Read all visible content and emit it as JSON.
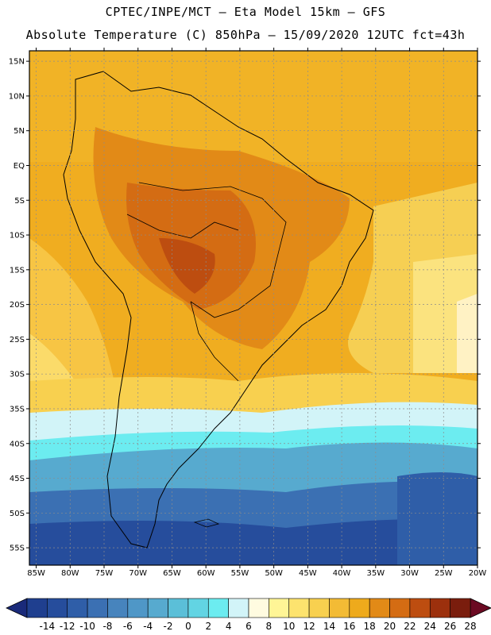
{
  "header": {
    "line1": "CPTEC/INPE/MCT –  Eta Model 15km – GFS",
    "line2": "Absolute Temperature (C) 850hPa – 15/09/2020 12UTC fct=43h"
  },
  "axes": {
    "lat_labels": [
      "15N",
      "10N",
      "5N",
      "EQ",
      "5S",
      "10S",
      "15S",
      "20S",
      "25S",
      "30S",
      "35S",
      "40S",
      "45S",
      "50S",
      "55S"
    ],
    "lon_labels": [
      "85W",
      "80W",
      "75W",
      "70W",
      "65W",
      "60W",
      "55W",
      "50W",
      "45W",
      "40W",
      "35W",
      "30W",
      "25W",
      "20W"
    ]
  },
  "colorbar": {
    "labels": [
      "-14",
      "-12",
      "-10",
      "-8",
      "-6",
      "-4",
      "-2",
      "0",
      "2",
      "4",
      "6",
      "8",
      "10",
      "12",
      "14",
      "16",
      "18",
      "20",
      "22",
      "24",
      "26",
      "28"
    ],
    "colors": [
      "#1f3f8f",
      "#264d9c",
      "#2f5ea8",
      "#3b70b3",
      "#4784bd",
      "#4f97c7",
      "#57aacf",
      "#5bbfd8",
      "#62d4e3",
      "#6cecf0",
      "#d2f4f8",
      "#fffbe0",
      "#fff596",
      "#fde36e",
      "#f8d04f",
      "#f3bb35",
      "#eeaa1c",
      "#e28a17",
      "#d46c13",
      "#bd4d10",
      "#9c300d",
      "#7a1d0d"
    ],
    "low_arrow": "#1a2a7a",
    "high_arrow": "#6b0a22"
  },
  "map": {
    "projection": "lat-lon",
    "lon_range": [
      -86,
      -20
    ],
    "lat_range": [
      -57.5,
      16.5
    ],
    "field": "temperature_850hPa_C"
  }
}
